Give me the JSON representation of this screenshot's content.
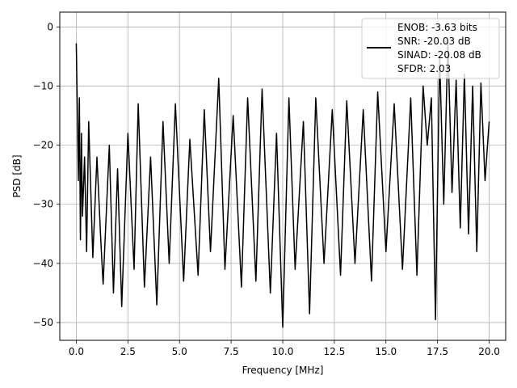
{
  "chart_data": {
    "type": "line",
    "xlabel": "Frequency [MHz]",
    "ylabel": "PSD [dB]",
    "xlim": [
      -0.8,
      20.8
    ],
    "ylim": [
      -53,
      2.5
    ],
    "xticks": [
      0.0,
      2.5,
      5.0,
      7.5,
      10.0,
      12.5,
      15.0,
      17.5,
      20.0
    ],
    "xtick_labels": [
      "0.0",
      "2.5",
      "5.0",
      "7.5",
      "10.0",
      "12.5",
      "15.0",
      "17.5",
      "20.0"
    ],
    "yticks": [
      0,
      -10,
      -20,
      -30,
      -40,
      -50
    ],
    "ytick_labels": [
      "0",
      "−10",
      "−20",
      "−30",
      "−40",
      "−50"
    ],
    "grid": true,
    "legend_position": "top-right",
    "legend_entries": [
      "ENOB: -3.63 bits",
      "SNR: -20.03 dB",
      "SINAD: -20.08 dB",
      "SFDR: 2.03"
    ],
    "series": [
      {
        "color": "#000000",
        "x": [
          0.0,
          0.05,
          0.1,
          0.15,
          0.2,
          0.25,
          0.3,
          0.4,
          0.5,
          0.6,
          0.8,
          1.0,
          1.2,
          1.3,
          1.6,
          1.8,
          2.0,
          2.2,
          2.5,
          2.8,
          3.0,
          3.3,
          3.6,
          3.9,
          4.2,
          4.5,
          4.8,
          5.2,
          5.5,
          5.9,
          6.2,
          6.5,
          6.9,
          7.2,
          7.6,
          8.0,
          8.3,
          8.7,
          9.0,
          9.4,
          9.7,
          10.0,
          10.3,
          10.6,
          11.0,
          11.3,
          11.6,
          12.0,
          12.4,
          12.8,
          13.1,
          13.5,
          13.9,
          14.3,
          14.6,
          15.0,
          15.4,
          15.8,
          16.2,
          16.5,
          16.8,
          17.0,
          17.2,
          17.4,
          17.6,
          17.8,
          18.0,
          18.2,
          18.4,
          18.6,
          18.8,
          19.0,
          19.2,
          19.4,
          19.6,
          19.8,
          20.0
        ],
        "y": [
          -2.8,
          -14.0,
          -26.0,
          -12.0,
          -36.0,
          -18.0,
          -32.0,
          -22.0,
          -38.0,
          -16.0,
          -39.0,
          -22.0,
          -37.0,
          -43.5,
          -20.0,
          -45.0,
          -24.0,
          -47.3,
          -18.0,
          -41.0,
          -13.0,
          -44.0,
          -22.0,
          -47.0,
          -16.0,
          -40.0,
          -13.0,
          -43.0,
          -19.0,
          -42.0,
          -14.0,
          -38.0,
          -8.7,
          -41.0,
          -15.0,
          -44.0,
          -12.0,
          -43.0,
          -10.5,
          -45.0,
          -18.0,
          -50.8,
          -12.0,
          -41.0,
          -16.0,
          -48.5,
          -12.0,
          -40.0,
          -14.0,
          -42.0,
          -12.5,
          -40.0,
          -14.0,
          -43.0,
          -11.0,
          -38.0,
          -13.0,
          -41.0,
          -12.0,
          -42.0,
          -10.0,
          -20.0,
          -12.0,
          -49.5,
          -5.0,
          -30.0,
          -2.5,
          -28.0,
          -9.0,
          -34.0,
          -8.0,
          -35.0,
          -10.0,
          -38.0,
          -9.5,
          -26.0,
          -16.0
        ]
      }
    ]
  }
}
